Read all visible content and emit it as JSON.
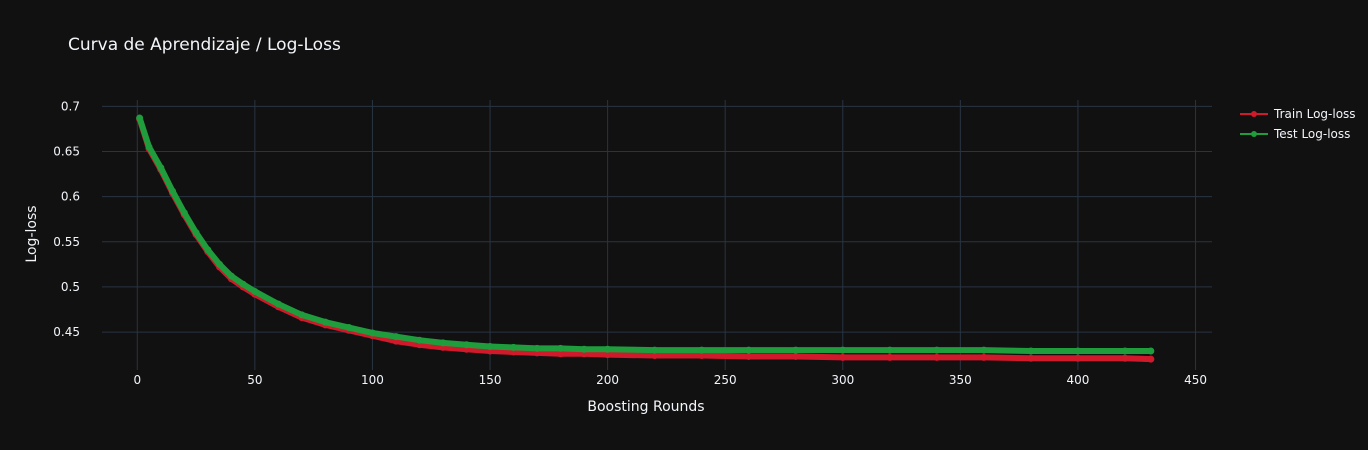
{
  "chart_data": {
    "type": "line",
    "title": "Curva de Aprendizaje / Log-Loss",
    "xlabel": "Boosting Rounds",
    "ylabel": "Log-loss",
    "xlim": [
      -15,
      457
    ],
    "ylim": [
      0.408,
      0.707
    ],
    "xticks": [
      0,
      50,
      100,
      150,
      200,
      250,
      300,
      350,
      400,
      450
    ],
    "yticks": [
      0.45,
      0.5,
      0.55,
      0.6,
      0.65,
      0.7
    ],
    "ytick_labels": [
      "0.45",
      "0.5",
      "0.55",
      "0.6",
      "0.65",
      "0.7"
    ],
    "grid": true,
    "legend_position": "top-right",
    "series": [
      {
        "name": "Train Log-loss",
        "color": "#d0192b",
        "x": [
          1,
          5,
          10,
          15,
          20,
          25,
          30,
          35,
          40,
          45,
          50,
          60,
          70,
          80,
          90,
          100,
          110,
          120,
          130,
          140,
          150,
          160,
          170,
          180,
          190,
          200,
          220,
          240,
          260,
          280,
          300,
          320,
          340,
          360,
          380,
          400,
          420,
          431
        ],
        "y": [
          0.686,
          0.653,
          0.63,
          0.604,
          0.58,
          0.558,
          0.539,
          0.522,
          0.509,
          0.5,
          0.492,
          0.478,
          0.466,
          0.458,
          0.452,
          0.446,
          0.44,
          0.436,
          0.433,
          0.431,
          0.429,
          0.428,
          0.427,
          0.426,
          0.426,
          0.425,
          0.424,
          0.424,
          0.423,
          0.423,
          0.422,
          0.422,
          0.422,
          0.422,
          0.421,
          0.421,
          0.421,
          0.42
        ]
      },
      {
        "name": "Test Log-loss",
        "color": "#1f9c3c",
        "x": [
          1,
          5,
          10,
          15,
          20,
          25,
          30,
          35,
          40,
          45,
          50,
          60,
          70,
          80,
          90,
          100,
          110,
          120,
          130,
          140,
          150,
          160,
          170,
          180,
          190,
          200,
          220,
          240,
          260,
          280,
          300,
          320,
          340,
          360,
          380,
          400,
          420,
          431
        ],
        "y": [
          0.687,
          0.655,
          0.632,
          0.606,
          0.582,
          0.56,
          0.541,
          0.525,
          0.512,
          0.503,
          0.495,
          0.481,
          0.469,
          0.461,
          0.455,
          0.449,
          0.445,
          0.441,
          0.438,
          0.436,
          0.434,
          0.433,
          0.432,
          0.432,
          0.431,
          0.431,
          0.43,
          0.43,
          0.43,
          0.43,
          0.43,
          0.43,
          0.43,
          0.43,
          0.429,
          0.429,
          0.429,
          0.429
        ]
      }
    ]
  }
}
